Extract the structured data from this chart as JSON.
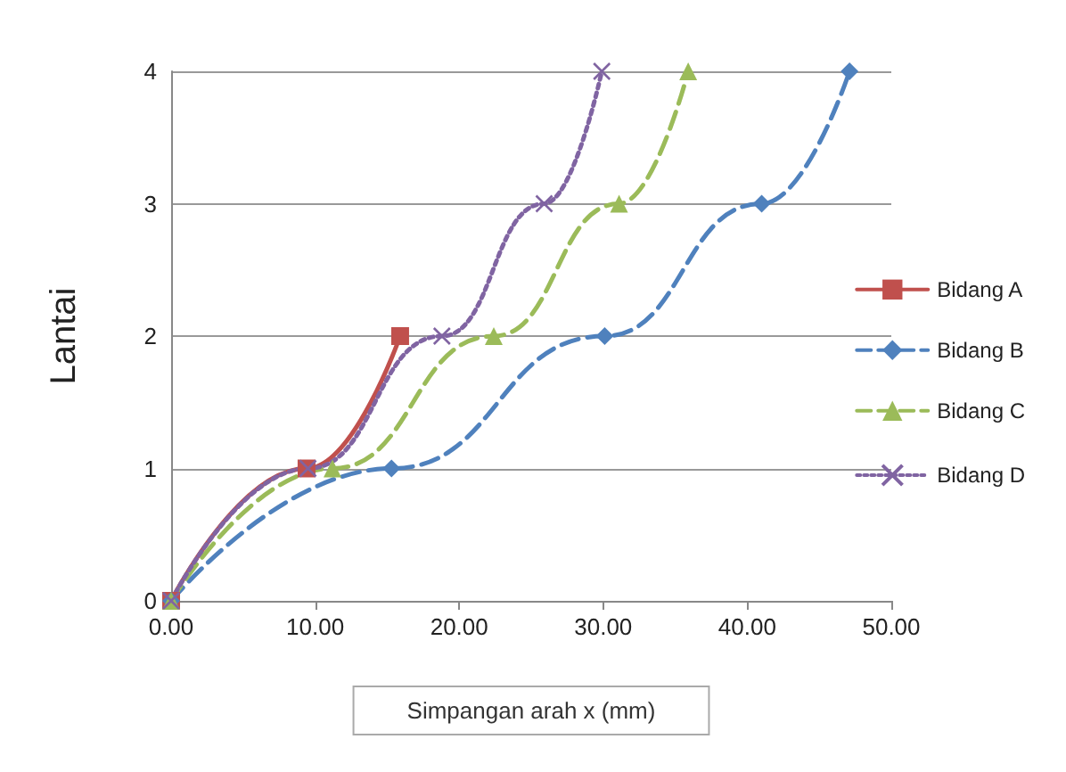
{
  "chart_data": {
    "type": "line",
    "xlabel": "Simpangan arah x (mm)",
    "ylabel": "Lantai",
    "xlim": [
      0,
      50
    ],
    "xticks": [
      {
        "value": 0,
        "label": "0.00"
      },
      {
        "value": 10,
        "label": "10.00"
      },
      {
        "value": 20,
        "label": "20.00"
      },
      {
        "value": 30,
        "label": "30.00"
      },
      {
        "value": 40,
        "label": "40.00"
      },
      {
        "value": 50,
        "label": "50.00"
      }
    ],
    "ylim": [
      0,
      4
    ],
    "yticks": [
      0,
      1,
      2,
      3,
      4
    ],
    "grid": "y",
    "legend": "right",
    "series": [
      {
        "name": "Bidang A",
        "color": "#c0504d",
        "marker": "square",
        "line_style": "solid",
        "x": [
          0,
          9.4,
          15.9
        ],
        "values": [
          0,
          1,
          2
        ]
      },
      {
        "name": "Bidang B",
        "color": "#4f81bd",
        "marker": "diamond",
        "line_style": "dashed",
        "x": [
          0,
          15.3,
          30.1,
          41.0,
          47.1
        ],
        "values": [
          0,
          1,
          2,
          3,
          4
        ]
      },
      {
        "name": "Bidang C",
        "color": "#9bbb59",
        "marker": "triangle",
        "line_style": "dashed",
        "x": [
          0,
          11.2,
          22.4,
          31.1,
          35.9
        ],
        "values": [
          0,
          1,
          2,
          3,
          4
        ]
      },
      {
        "name": "Bidang D",
        "color": "#8064a2",
        "marker": "cross",
        "line_style": "dotted",
        "x": [
          0,
          9.5,
          18.8,
          25.9,
          29.9
        ],
        "values": [
          0,
          1,
          2,
          3,
          4
        ]
      }
    ]
  }
}
